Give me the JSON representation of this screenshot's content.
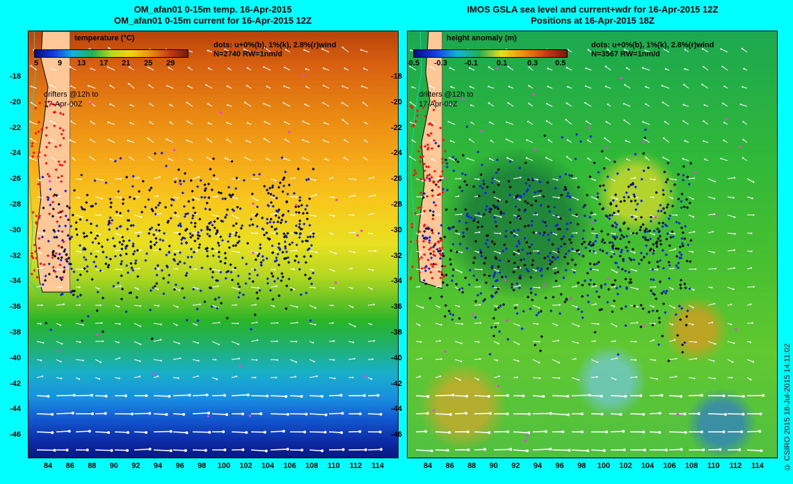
{
  "left_panel": {
    "title_line1": "OM_afan01 0-15m temp. 16-Apr-2015",
    "title_line2": "OM_afan01 0-15m current for 16-Apr-2015 12Z",
    "colorbar_title": "temperature (°C)",
    "colorbar_ticks": [
      "5",
      "9",
      "13",
      "17",
      "21",
      "25",
      "29"
    ],
    "dots_legend": "dots: u+0%(b), 1%(k), 2.8%(r)wind",
    "stats": "N=2740 RW=1nm/d",
    "drifters_line1": "drifters @12h to",
    "drifters_line2": "17-Apr-00Z"
  },
  "right_panel": {
    "title_line1": "IMOS GSLA sea level and current+wdr for 16-Apr-2015 12Z",
    "title_line2": "Positions at 16-Apr-2015 18Z",
    "colorbar_title": "height anomaly (m)",
    "colorbar_ticks": [
      "-0.5",
      "-0.3",
      "-0.1",
      "0.1",
      "0.3",
      "0.5"
    ],
    "dots_legend": "dots: u+0%(b), 1%(k), 2.8%(r)wind",
    "stats": "N=3567 RW=1nm/d",
    "drifters_line1": "drifters @12h to",
    "drifters_line2": "17-Apr-00Z"
  },
  "axes": {
    "latitudes": [
      "-18",
      "-20",
      "-22",
      "-24",
      "-26",
      "-28",
      "-30",
      "-32",
      "-34",
      "-36",
      "-38",
      "-40",
      "-42",
      "-44",
      "-46"
    ],
    "longitudes": [
      "84",
      "86",
      "88",
      "90",
      "92",
      "94",
      "96",
      "98",
      "100",
      "102",
      "104",
      "106",
      "108",
      "110",
      "112",
      "114"
    ]
  },
  "watermark": "© CSIRO 2015  18-Jul-2015 14:11:02",
  "colors": {
    "background": "#00ffff",
    "land": "#ffc896",
    "coastline": "#00d8d8",
    "vector": "#ffffff",
    "dot_current": "#1020e0",
    "dot_one_percent": "#000000",
    "dot_wind": "#ff1010",
    "dot_other": "#ff30ff"
  }
}
